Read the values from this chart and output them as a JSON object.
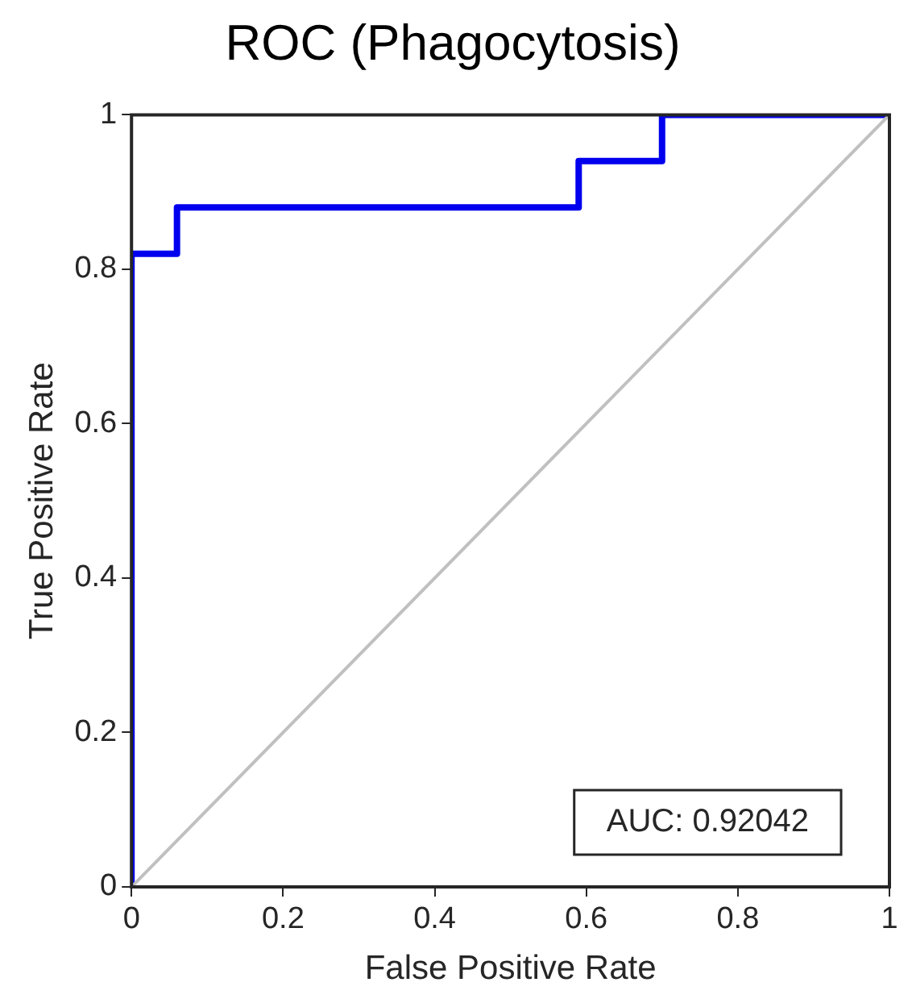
{
  "chart_data": {
    "type": "line",
    "title": "ROC (Phagocytosis)",
    "xlabel": "False Positive Rate",
    "ylabel": "True Positive Rate",
    "series": [
      {
        "color": "#c0c0c0",
        "x": [
          0,
          1
        ],
        "values": [
          0,
          1
        ]
      },
      {
        "color": "#0000ee",
        "x": [
          0,
          0,
          0.06,
          0.06,
          0.59,
          0.59,
          0.7,
          0.7,
          1
        ],
        "values": [
          0,
          0.82,
          0.82,
          0.88,
          0.88,
          0.94,
          0.94,
          1,
          1
        ]
      }
    ],
    "xlim": [
      0,
      1
    ],
    "ylim": [
      0,
      1
    ],
    "xticks": [
      0,
      0.2,
      0.4,
      0.6,
      0.8,
      1
    ],
    "yticks": [
      0,
      0.2,
      0.4,
      0.6,
      0.8,
      1
    ],
    "annotations": [
      "AUC: 0.92042"
    ],
    "grid": false,
    "legend": false,
    "marker": "none"
  }
}
